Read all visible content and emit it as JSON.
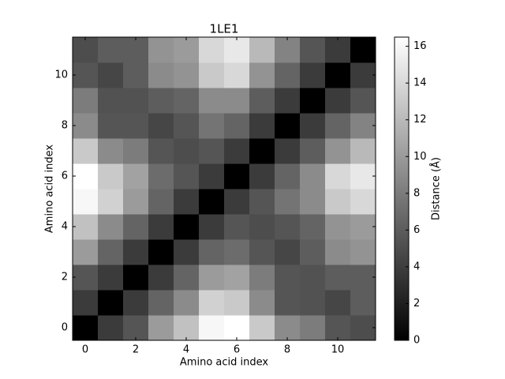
{
  "chart_data": {
    "type": "heatmap",
    "title": "1LE1",
    "xlabel": "Amino acid index",
    "ylabel": "Amino acid index",
    "colorbar_label": "Distance (Å)",
    "colormap": "gray",
    "xlim": [
      -0.5,
      11.5
    ],
    "ylim": [
      -0.5,
      11.5
    ],
    "xticks": [
      0,
      2,
      4,
      6,
      8,
      10
    ],
    "yticks": [
      0,
      2,
      4,
      6,
      8,
      10
    ],
    "clim": [
      0,
      16.5
    ],
    "cticks": [
      0,
      2,
      4,
      6,
      8,
      10,
      12,
      14,
      16
    ],
    "z": [
      [
        0,
        3.8,
        5.5,
        10,
        12.5,
        16,
        16.5,
        13,
        9,
        8,
        5.5,
        5
      ],
      [
        3.8,
        0,
        3.8,
        6.5,
        9,
        13.5,
        13,
        9,
        5.5,
        5.3,
        4.5,
        6
      ],
      [
        5.5,
        3.8,
        0,
        3.8,
        6.5,
        10,
        10.5,
        8,
        5.5,
        5.3,
        6,
        6
      ],
      [
        10,
        6.5,
        3.8,
        0,
        3.8,
        6.5,
        7,
        5.5,
        4.5,
        6,
        9,
        9.5
      ],
      [
        12.5,
        9,
        6.5,
        3.8,
        0,
        3.8,
        5.5,
        5,
        5.5,
        6.5,
        9.5,
        10
      ],
      [
        16,
        13.5,
        10,
        6.5,
        3.8,
        0,
        3.8,
        5.5,
        7.5,
        9,
        13,
        14
      ],
      [
        16.5,
        13,
        10.5,
        7,
        5.5,
        3.8,
        0,
        3.8,
        6.5,
        9,
        14,
        15
      ],
      [
        13,
        9,
        8,
        5.5,
        5,
        5.5,
        3.8,
        0,
        3.8,
        6,
        9.5,
        12
      ],
      [
        9,
        5.5,
        5.5,
        4.5,
        5.5,
        7.5,
        6.5,
        3.8,
        0,
        3.8,
        6.5,
        8.5
      ],
      [
        8,
        5.3,
        5.3,
        6,
        6.5,
        9,
        9,
        6,
        3.8,
        0,
        3.8,
        5.5
      ],
      [
        5.5,
        4.5,
        6,
        9,
        9.5,
        13,
        14,
        9.5,
        6.5,
        3.8,
        0,
        3.8
      ],
      [
        5,
        6,
        6,
        9.5,
        10,
        14,
        15,
        12,
        8.5,
        5.5,
        3.8,
        0
      ]
    ]
  }
}
